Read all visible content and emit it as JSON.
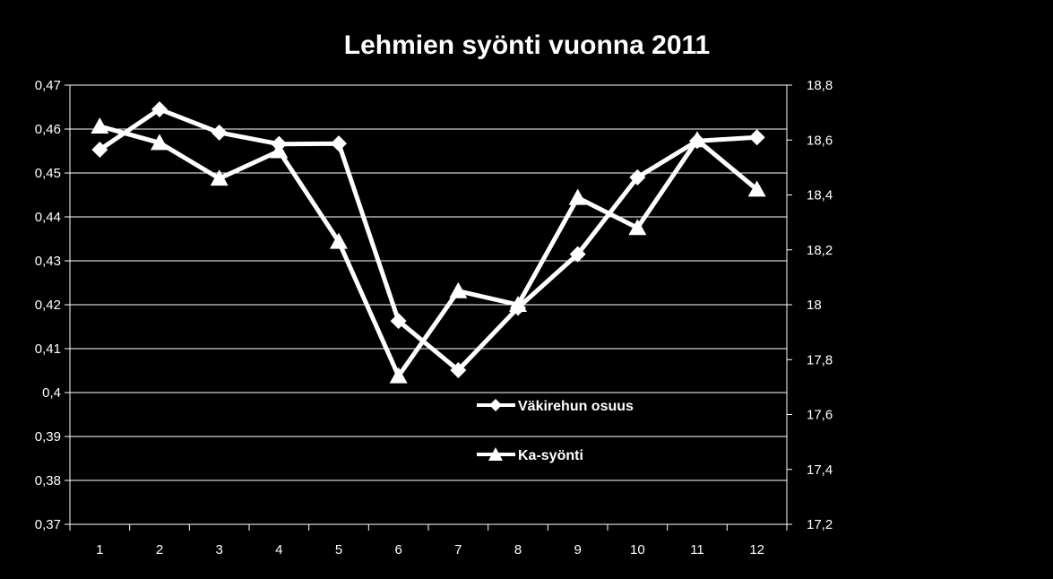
{
  "chart_data": {
    "type": "line",
    "title": "Lehmien syönti vuonna 2011",
    "background": "#000000",
    "line_color": "#ffffff",
    "grid": true,
    "legend_position": "inside-bottom-center",
    "categories": [
      "1",
      "2",
      "3",
      "4",
      "5",
      "6",
      "7",
      "8",
      "9",
      "10",
      "11",
      "12"
    ],
    "y_left": {
      "lim": [
        0.37,
        0.47
      ],
      "ticks": [
        "0,47",
        "0,46",
        "0,45",
        "0,44",
        "0,43",
        "0,42",
        "0,41",
        "0,4",
        "0,39",
        "0,38",
        "0,37"
      ]
    },
    "y_right": {
      "lim": [
        17.2,
        18.8
      ],
      "ticks": [
        "18,8",
        "18,6",
        "18,4",
        "18,2",
        "18",
        "17,8",
        "17,6",
        "17,4",
        "17,2"
      ]
    },
    "series": [
      {
        "name": "Väkirehun osuus",
        "axis": "left",
        "marker": "diamond",
        "values": [
          0.4553,
          0.4645,
          0.4592,
          0.4566,
          0.4567,
          0.4163,
          0.4051,
          0.4193,
          0.4315,
          0.449,
          0.4573,
          0.4581
        ]
      },
      {
        "name": "Ka-syönti",
        "axis": "right",
        "marker": "triangle",
        "values": [
          18.65,
          18.59,
          18.46,
          18.56,
          18.23,
          17.74,
          18.05,
          18.0,
          18.39,
          18.28,
          18.6,
          18.42
        ]
      }
    ]
  }
}
